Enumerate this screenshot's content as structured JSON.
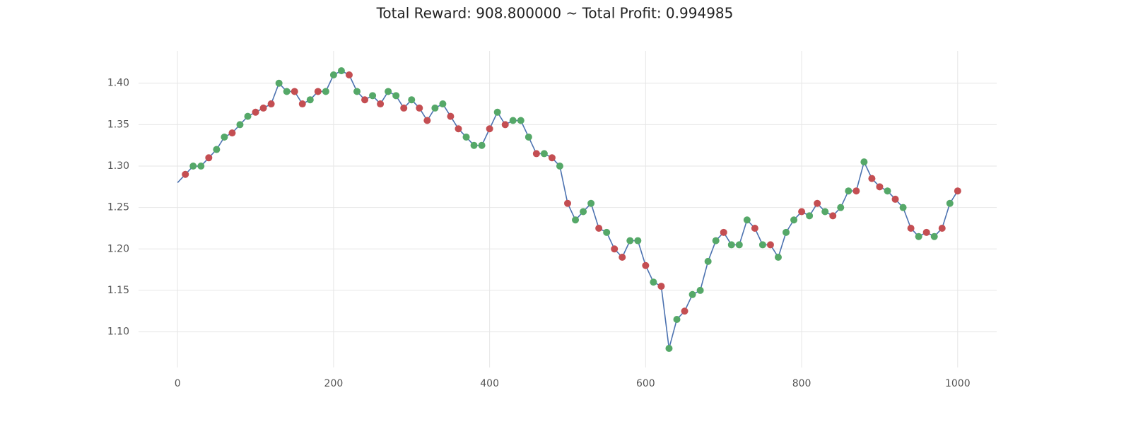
{
  "chart_data": {
    "type": "line",
    "title": "Total Reward: 908.800000 ~ Total Profit: 0.994985",
    "x": [
      0,
      10,
      20,
      30,
      40,
      50,
      60,
      70,
      80,
      90,
      100,
      110,
      120,
      130,
      140,
      150,
      160,
      170,
      180,
      190,
      200,
      210,
      220,
      230,
      240,
      250,
      260,
      270,
      280,
      290,
      300,
      310,
      320,
      330,
      340,
      350,
      360,
      370,
      380,
      390,
      400,
      410,
      420,
      430,
      440,
      450,
      460,
      470,
      480,
      490,
      500,
      510,
      520,
      530,
      540,
      550,
      560,
      570,
      580,
      590,
      600,
      610,
      620,
      630,
      640,
      650,
      660,
      670,
      680,
      690,
      700,
      710,
      720,
      730,
      740,
      750,
      760,
      770,
      780,
      790,
      800,
      810,
      820,
      830,
      840,
      850,
      860,
      870,
      880,
      890,
      900,
      910,
      920,
      930,
      940,
      950,
      960,
      970,
      980,
      990,
      1000
    ],
    "series": [
      {
        "type": "line",
        "color": "#4c72b0",
        "values": [
          1.28,
          1.29,
          1.3,
          1.3,
          1.31,
          1.32,
          1.335,
          1.34,
          1.35,
          1.36,
          1.365,
          1.37,
          1.375,
          1.4,
          1.39,
          1.39,
          1.375,
          1.38,
          1.39,
          1.39,
          1.41,
          1.415,
          1.41,
          1.39,
          1.38,
          1.385,
          1.375,
          1.39,
          1.385,
          1.37,
          1.38,
          1.37,
          1.355,
          1.37,
          1.375,
          1.36,
          1.345,
          1.335,
          1.325,
          1.325,
          1.345,
          1.365,
          1.35,
          1.355,
          1.355,
          1.335,
          1.315,
          1.315,
          1.31,
          1.3,
          1.255,
          1.235,
          1.245,
          1.255,
          1.225,
          1.22,
          1.2,
          1.19,
          1.21,
          1.21,
          1.18,
          1.16,
          1.155,
          1.08,
          1.115,
          1.125,
          1.145,
          1.15,
          1.185,
          1.21,
          1.22,
          1.205,
          1.205,
          1.235,
          1.225,
          1.205,
          1.205,
          1.19,
          1.22,
          1.235,
          1.245,
          1.24,
          1.255,
          1.245,
          1.24,
          1.25,
          1.27,
          1.27,
          1.305,
          1.285,
          1.275,
          1.27,
          1.26,
          1.25,
          1.225,
          1.215,
          1.22,
          1.215,
          1.225,
          1.255,
          1.27
        ]
      },
      {
        "type": "scatter",
        "color": "#c44e52",
        "values": [
          null,
          1.29,
          null,
          null,
          1.31,
          null,
          null,
          1.34,
          null,
          null,
          1.365,
          1.37,
          1.375,
          null,
          null,
          1.39,
          1.375,
          null,
          1.39,
          null,
          null,
          null,
          1.41,
          null,
          1.38,
          null,
          1.375,
          null,
          null,
          1.37,
          null,
          1.37,
          1.355,
          null,
          null,
          1.36,
          1.345,
          null,
          null,
          null,
          1.345,
          null,
          1.35,
          null,
          null,
          null,
          1.315,
          null,
          1.31,
          null,
          1.255,
          null,
          null,
          null,
          1.225,
          null,
          1.2,
          1.19,
          null,
          null,
          1.18,
          null,
          1.155,
          null,
          null,
          1.125,
          null,
          null,
          null,
          null,
          1.22,
          null,
          null,
          null,
          1.225,
          null,
          1.205,
          null,
          null,
          null,
          1.245,
          null,
          1.255,
          null,
          1.24,
          null,
          null,
          1.27,
          null,
          1.285,
          1.275,
          null,
          1.26,
          null,
          1.225,
          null,
          1.22,
          null,
          1.225,
          null,
          1.27
        ]
      },
      {
        "type": "scatter",
        "color": "#55a868",
        "values": [
          null,
          null,
          1.3,
          1.3,
          null,
          1.32,
          1.335,
          null,
          1.35,
          1.36,
          null,
          null,
          null,
          1.4,
          1.39,
          null,
          null,
          1.38,
          null,
          1.39,
          1.41,
          1.415,
          null,
          1.39,
          null,
          1.385,
          null,
          1.39,
          1.385,
          null,
          1.38,
          null,
          null,
          1.37,
          1.375,
          null,
          null,
          1.335,
          1.325,
          1.325,
          null,
          1.365,
          null,
          1.355,
          1.355,
          1.335,
          null,
          1.315,
          null,
          1.3,
          null,
          1.235,
          1.245,
          1.255,
          null,
          1.22,
          null,
          null,
          1.21,
          1.21,
          null,
          1.16,
          null,
          1.08,
          1.115,
          null,
          1.145,
          1.15,
          1.185,
          1.21,
          null,
          1.205,
          1.205,
          1.235,
          null,
          1.205,
          null,
          1.19,
          1.22,
          1.235,
          null,
          1.24,
          null,
          1.245,
          null,
          1.25,
          1.27,
          null,
          1.305,
          null,
          null,
          1.27,
          null,
          1.25,
          null,
          1.215,
          null,
          1.215,
          null,
          1.255,
          null
        ]
      }
    ],
    "xlim": [
      -50,
      1050
    ],
    "ylim": [
      1.057,
      1.439
    ],
    "xticks": [
      0,
      200,
      400,
      600,
      800,
      1000
    ],
    "yticks": [
      {
        "value": 1.1,
        "label": "1.10"
      },
      1.15,
      {
        "value": 1.2,
        "label": "1.20"
      },
      1.25,
      {
        "value": 1.3,
        "label": "1.30"
      },
      1.35,
      {
        "value": 1.4,
        "label": "1.40"
      }
    ],
    "grid": true
  }
}
